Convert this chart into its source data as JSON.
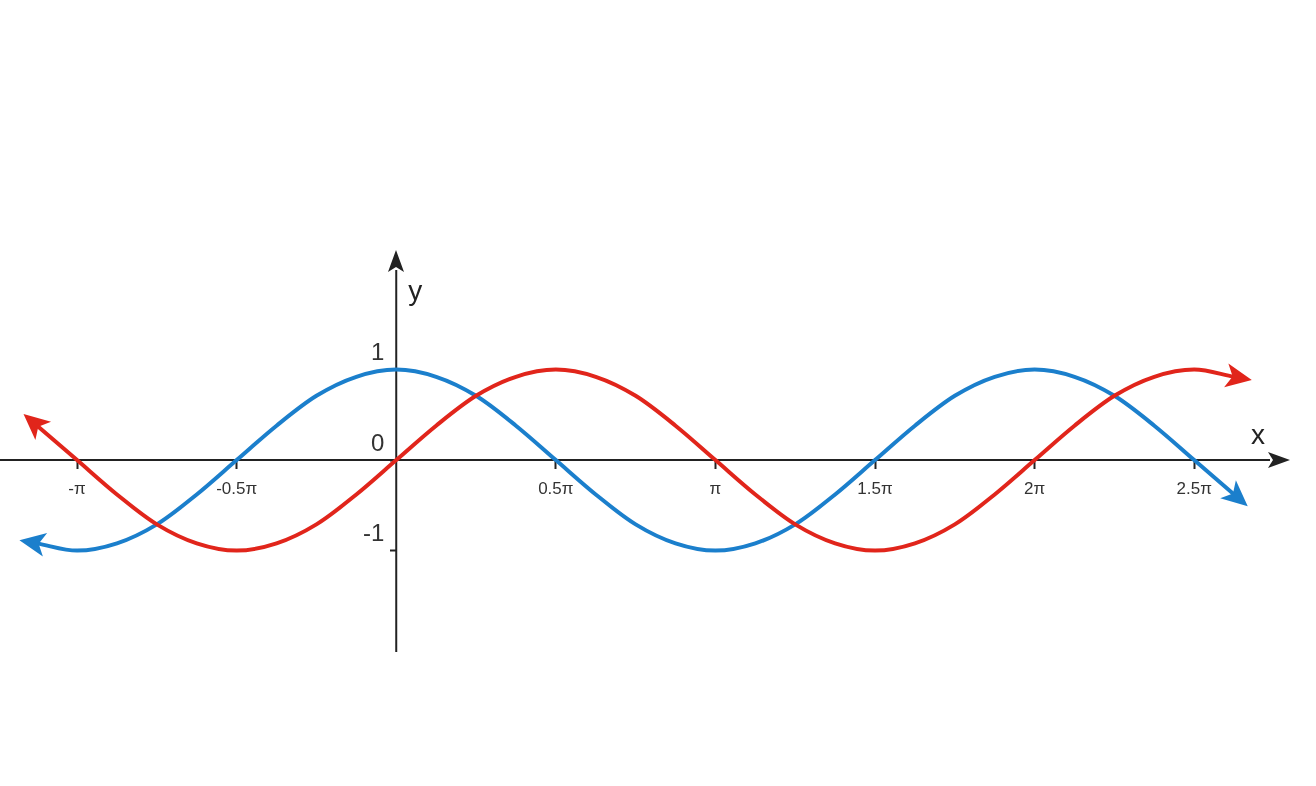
{
  "chart_data": {
    "type": "line",
    "xlabel": "x",
    "ylabel": "y",
    "x": [
      -3.5343,
      -3.1416,
      -2.7489,
      -2.3562,
      -1.9635,
      -1.5708,
      -1.1781,
      -0.7854,
      -0.3927,
      0,
      0.3927,
      0.7854,
      1.1781,
      1.5708,
      1.9635,
      2.3562,
      2.7489,
      3.1416,
      3.5343,
      3.927,
      4.3197,
      4.7124,
      5.1051,
      5.4978,
      5.8905,
      6.2832,
      6.6759,
      7.0686,
      7.4613,
      7.854,
      8.2467
    ],
    "series": [
      {
        "color": "#e1251b",
        "values": [
          0.38,
          0,
          -0.38,
          -0.71,
          -0.92,
          -1,
          -0.92,
          -0.71,
          -0.38,
          0,
          0.38,
          0.71,
          0.92,
          1,
          0.92,
          0.71,
          0.38,
          0,
          -0.38,
          -0.71,
          -0.92,
          -1,
          -0.92,
          -0.71,
          -0.38,
          0,
          0.38,
          0.71,
          0.92,
          1,
          0.92
        ]
      },
      {
        "color": "#1b7fcc",
        "values": [
          -0.92,
          -1,
          -0.92,
          -0.71,
          -0.38,
          0,
          0.38,
          0.71,
          0.92,
          1,
          0.92,
          0.71,
          0.38,
          0,
          -0.38,
          -0.71,
          -0.92,
          -1,
          -0.92,
          -0.71,
          -0.38,
          0,
          0.38,
          0.71,
          0.92,
          1,
          0.92,
          0.71,
          0.38,
          0,
          -0.38
        ]
      }
    ],
    "xlim": [
      -3.9,
      8.6
    ],
    "ylim": [
      -2.12,
      2.1
    ],
    "xticks": [
      {
        "value": -3.1416,
        "label": "-π"
      },
      {
        "value": -1.5708,
        "label": "-0.5π"
      },
      {
        "value": 1.5708,
        "label": "0.5π"
      },
      {
        "value": 3.1416,
        "label": "π"
      },
      {
        "value": 4.7124,
        "label": "1.5π"
      },
      {
        "value": 6.2832,
        "label": "2π"
      },
      {
        "value": 7.854,
        "label": "2.5π"
      }
    ],
    "yticks": [
      -1,
      0,
      1
    ]
  }
}
